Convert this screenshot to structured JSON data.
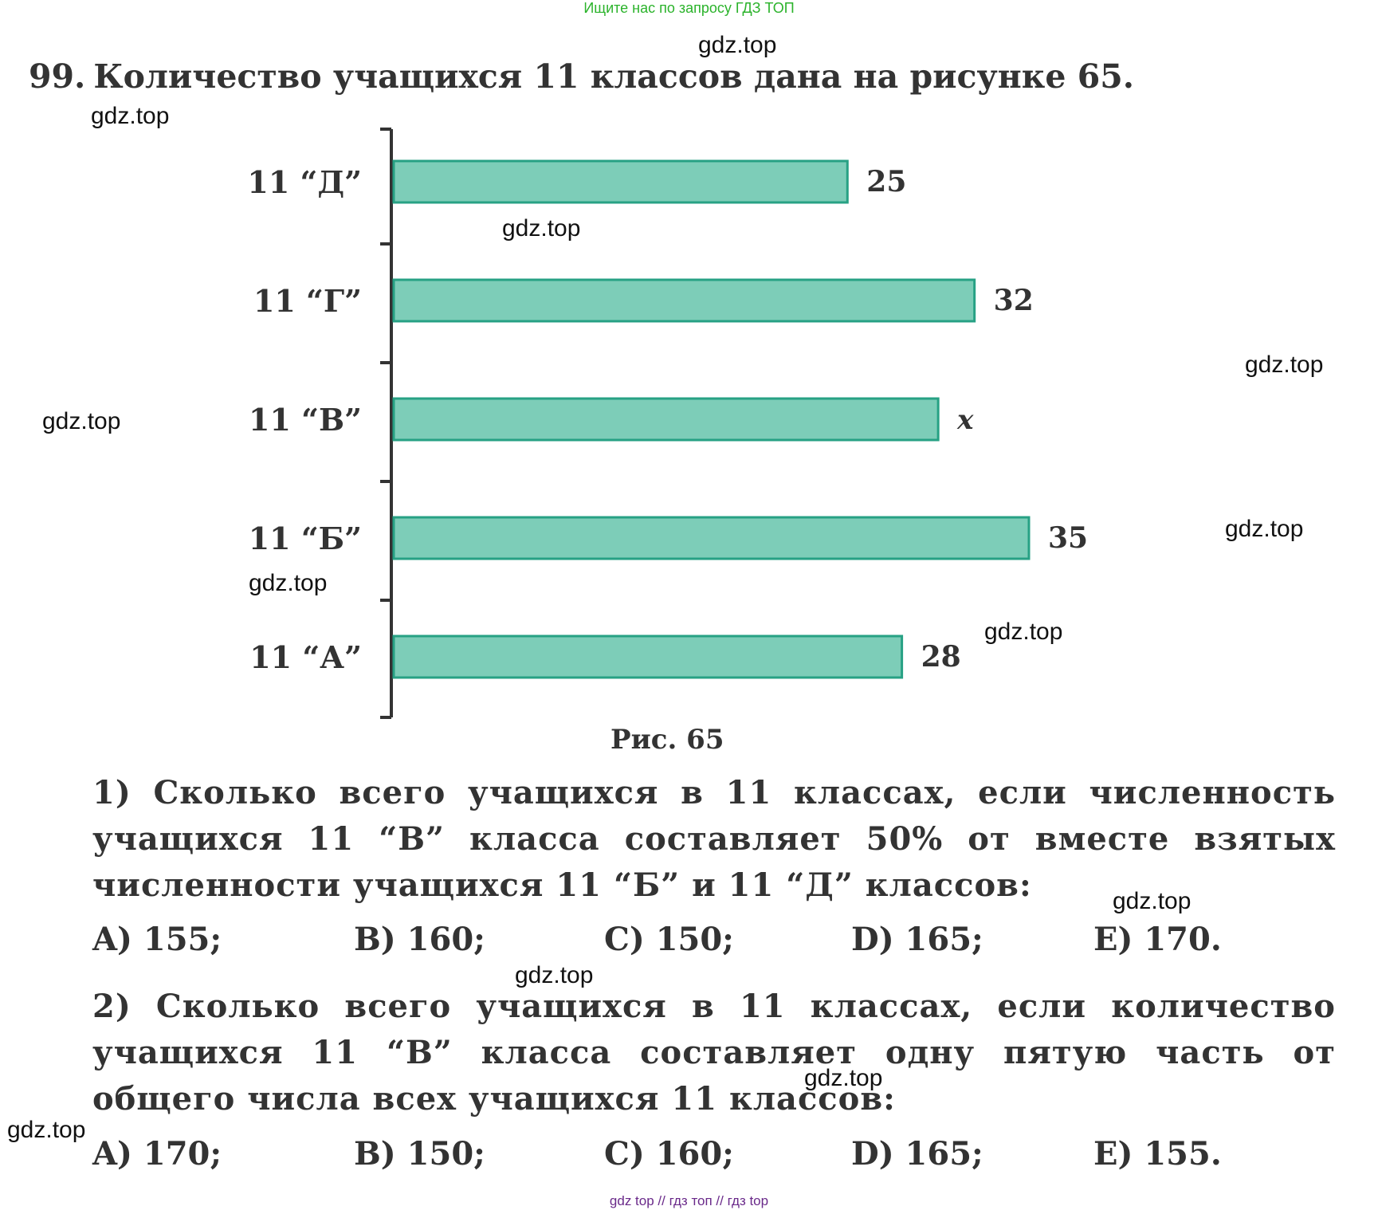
{
  "top_note": "Ищите нас по запросу ГДЗ ТОП",
  "watermark": "gdz.top",
  "problem": {
    "number": "99.",
    "text": "Количество учащихся 11 классов дана на рисунке 65."
  },
  "chart_data": {
    "type": "bar",
    "orientation": "horizontal",
    "categories": [
      "11 “Д”",
      "11 “Г”",
      "11 “В”",
      "11 “Б”",
      "11 “А”"
    ],
    "values": [
      25,
      32,
      30,
      35,
      28
    ],
    "value_labels": [
      "25",
      "32",
      "x",
      "35",
      "28"
    ],
    "title": "",
    "xlabel": "",
    "ylabel": "",
    "xlim": [
      0,
      35
    ]
  },
  "caption": "Рис. 65",
  "q1": {
    "text": "1) Сколько всего учащихся в 11 классах, если численность учащихся 11 “В” класса составляет 50% от вместе взятых численности учащихся 11 “Б” и 11 “Д” классов:",
    "options": [
      "A) 155;",
      "B) 160;",
      "C) 150;",
      "D) 165;",
      "E) 170."
    ]
  },
  "q2": {
    "text": "2) Сколько всего учащихся в 11 классах, если количество учащихся 11 “В” класса составляет одну пятую часть от общего числа всех учащихся 11 классов:",
    "options": [
      "A) 170;",
      "B) 150;",
      "C) 160;",
      "D) 165;",
      "E) 155."
    ]
  },
  "footer": "gdz top  //  гдз топ  //  гдз top",
  "colors": {
    "bar_fill": "#7dcdb8",
    "bar_stroke": "#27a184",
    "text": "#333333",
    "top_note": "#2bb32b"
  }
}
